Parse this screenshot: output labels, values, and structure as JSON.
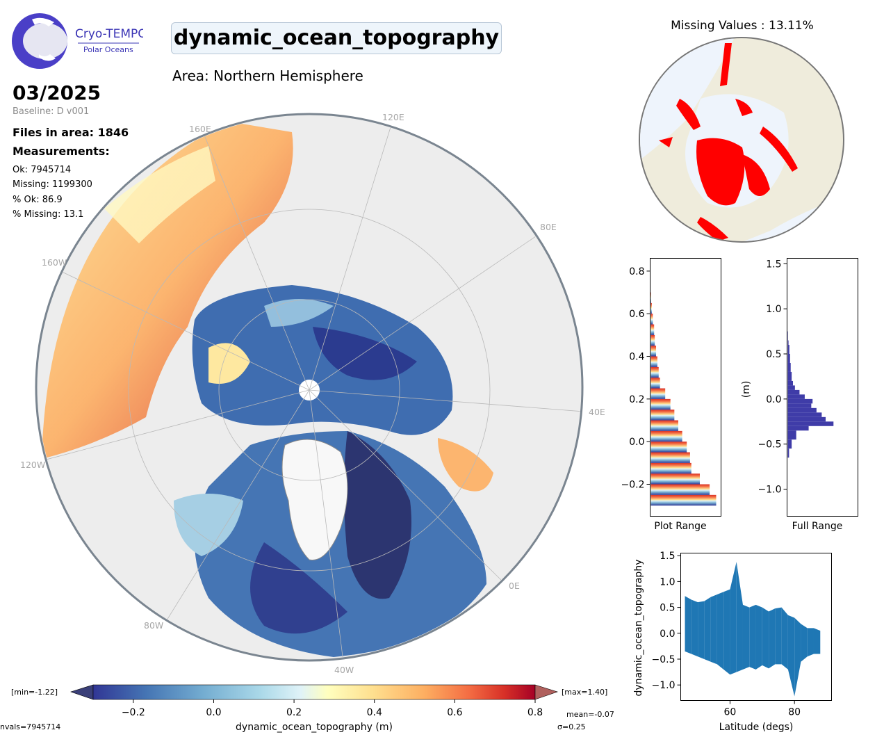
{
  "logo": {
    "name": "Cryo-TEMPO",
    "sub": "Polar Oceans"
  },
  "header": {
    "title": "dynamic_ocean_topography",
    "area": "Area: Northern Hemisphere",
    "date": "03/2025",
    "baseline": "Baseline: D v001"
  },
  "stats": {
    "files": "Files in area: 1846",
    "measurements": "Measurements:",
    "ok": "Ok: 7945714",
    "missing": "Missing: 1199300",
    "pct_ok": "% Ok: 86.9",
    "pct_missing": "% Missing: 13.1"
  },
  "map": {
    "lon_labels": [
      "120E",
      "160E",
      "80E",
      "160W",
      "40E",
      "120W",
      "0E",
      "80W",
      "40W"
    ],
    "colors": {
      "land": "#e6e6e6",
      "ocean_low": "#313695",
      "ocean_high": "#a50026"
    }
  },
  "missing_map": {
    "title": "Missing Values : 13.11%",
    "colors": {
      "land": "#efecdc",
      "ocean": "#eef4fc",
      "missing": "#ff0000"
    }
  },
  "colorbar": {
    "label": "dynamic_ocean_topography (m)",
    "ticks": [
      "−0.2",
      "0.0",
      "0.2",
      "0.4",
      "0.6",
      "0.8"
    ],
    "min_label": "[min=-1.22]",
    "max_label": "[max=1.40]",
    "mean": "mean=-0.07",
    "sigma": "σ=0.25",
    "nvals": "nvals=7945714"
  },
  "chart_data": [
    {
      "type": "bar",
      "orientation": "horizontal",
      "xlabel": "Plot Range",
      "ylim": [
        -0.35,
        0.86
      ],
      "y_ticks": [
        "−0.2",
        "0.0",
        "0.2",
        "0.4",
        "0.6",
        "0.8"
      ],
      "bins": [
        -0.3,
        -0.25,
        -0.2,
        -0.15,
        -0.1,
        -0.05,
        0.0,
        0.05,
        0.1,
        0.15,
        0.2,
        0.25,
        0.3,
        0.35,
        0.4,
        0.45,
        0.5,
        0.55,
        0.6,
        0.65
      ],
      "values": [
        1.0,
        0.9,
        0.75,
        0.62,
        0.6,
        0.55,
        0.48,
        0.42,
        0.36,
        0.3,
        0.22,
        0.14,
        0.12,
        0.1,
        0.08,
        0.06,
        0.05,
        0.03,
        0.015,
        0.005
      ]
    },
    {
      "type": "bar",
      "orientation": "horizontal",
      "xlabel": "Full Range",
      "ylabel": "(m)",
      "ylim": [
        -1.3,
        1.56
      ],
      "y_ticks": [
        "−1.0",
        "−0.5",
        "0.0",
        "0.5",
        "1.0",
        "1.5"
      ],
      "bins": [
        -0.65,
        -0.55,
        -0.45,
        -0.35,
        -0.3,
        -0.25,
        -0.2,
        -0.15,
        -0.1,
        -0.05,
        0.0,
        0.05,
        0.1,
        0.15,
        0.2,
        0.3,
        0.4,
        0.5,
        0.6,
        0.65
      ],
      "values": [
        0.02,
        0.06,
        0.13,
        0.32,
        0.7,
        0.58,
        0.52,
        0.44,
        0.36,
        0.38,
        0.26,
        0.18,
        0.11,
        0.08,
        0.06,
        0.045,
        0.035,
        0.025,
        0.012,
        0.005
      ]
    },
    {
      "type": "scatter",
      "xlabel": "Latitude (degs)",
      "ylabel": "dynamic_ocean_topography",
      "xlim": [
        44.7,
        91.5
      ],
      "ylim": [
        -1.3,
        1.55
      ],
      "x_ticks": [
        "60",
        "80"
      ],
      "y_ticks": [
        "−1.0",
        "−0.5",
        "0.0",
        "0.5",
        "1.0",
        "1.5"
      ],
      "x": [
        46,
        48,
        50,
        52,
        54,
        56,
        58,
        60,
        62,
        64,
        66,
        68,
        70,
        72,
        74,
        76,
        78,
        80,
        82,
        84,
        86,
        88
      ],
      "y_max": [
        0.72,
        0.65,
        0.6,
        0.62,
        0.7,
        0.75,
        0.8,
        0.85,
        1.38,
        0.55,
        0.5,
        0.55,
        0.5,
        0.42,
        0.48,
        0.5,
        0.35,
        0.3,
        0.18,
        0.1,
        0.1,
        0.05
      ],
      "y_min": [
        -0.35,
        -0.4,
        -0.45,
        -0.5,
        -0.55,
        -0.6,
        -0.7,
        -0.8,
        -0.75,
        -0.7,
        -0.65,
        -0.7,
        -0.62,
        -0.68,
        -0.6,
        -0.6,
        -0.7,
        -1.22,
        -0.55,
        -0.45,
        -0.4,
        -0.4
      ]
    }
  ]
}
